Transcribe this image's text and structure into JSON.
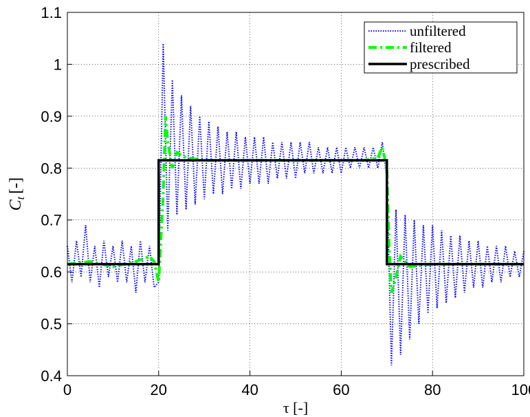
{
  "chart_data": {
    "type": "line",
    "xlabel": "τ [-]",
    "ylabel_main": "C",
    "ylabel_subscript": "t",
    "ylabel_unit": "[-]",
    "xlim": [
      0,
      100
    ],
    "ylim": [
      0.4,
      1.1
    ],
    "xticks": [
      0,
      20,
      40,
      60,
      80,
      100
    ],
    "yticks": [
      0.4,
      0.5,
      0.6,
      0.7,
      0.8,
      0.9,
      1,
      1.1
    ],
    "grid": true,
    "legend": "upper right",
    "series": [
      {
        "name": "unfiltered",
        "color": "#0000ff",
        "style": "dotted",
        "width": 2,
        "x": [
          0,
          1,
          2,
          3,
          4,
          5,
          6,
          7,
          8,
          9,
          10,
          11,
          12,
          13,
          14,
          15,
          16,
          17,
          18,
          19,
          20,
          21,
          22,
          23,
          24,
          25,
          26,
          27,
          28,
          29,
          30,
          31,
          32,
          33,
          34,
          35,
          36,
          37,
          38,
          39,
          40,
          41,
          42,
          43,
          44,
          45,
          46,
          47,
          48,
          49,
          50,
          51,
          52,
          53,
          54,
          55,
          56,
          57,
          58,
          59,
          60,
          61,
          62,
          63,
          64,
          65,
          66,
          67,
          68,
          69,
          70,
          71,
          72,
          73,
          74,
          75,
          76,
          77,
          78,
          79,
          80,
          81,
          82,
          83,
          84,
          85,
          86,
          87,
          88,
          89,
          90,
          91,
          92,
          93,
          94,
          95,
          96,
          97,
          98,
          99,
          100
        ],
        "values": [
          0.65,
          0.58,
          0.66,
          0.59,
          0.69,
          0.58,
          0.65,
          0.57,
          0.66,
          0.59,
          0.65,
          0.58,
          0.66,
          0.58,
          0.65,
          0.56,
          0.66,
          0.58,
          0.65,
          0.57,
          0.58,
          1.04,
          0.68,
          0.97,
          0.71,
          0.94,
          0.72,
          0.92,
          0.73,
          0.9,
          0.74,
          0.89,
          0.75,
          0.88,
          0.75,
          0.87,
          0.76,
          0.87,
          0.76,
          0.86,
          0.77,
          0.86,
          0.77,
          0.86,
          0.77,
          0.85,
          0.78,
          0.85,
          0.78,
          0.85,
          0.78,
          0.85,
          0.79,
          0.85,
          0.79,
          0.84,
          0.79,
          0.84,
          0.79,
          0.84,
          0.79,
          0.84,
          0.8,
          0.84,
          0.8,
          0.84,
          0.8,
          0.84,
          0.8,
          0.85,
          0.78,
          0.42,
          0.72,
          0.44,
          0.71,
          0.47,
          0.7,
          0.5,
          0.69,
          0.52,
          0.69,
          0.53,
          0.68,
          0.54,
          0.67,
          0.55,
          0.67,
          0.56,
          0.66,
          0.57,
          0.66,
          0.57,
          0.65,
          0.58,
          0.65,
          0.58,
          0.65,
          0.59,
          0.64,
          0.59,
          0.64
        ]
      },
      {
        "name": "filtered",
        "color": "#00ff00",
        "style": "dashdot",
        "width": 4,
        "x": [
          0,
          5,
          10,
          15,
          18,
          19,
          20,
          21,
          21.5,
          22,
          23,
          24,
          26,
          30,
          40,
          50,
          60,
          65,
          68,
          69,
          70,
          70.5,
          71,
          72,
          73,
          75,
          80,
          90,
          100
        ],
        "values": [
          0.615,
          0.62,
          0.61,
          0.62,
          0.63,
          0.62,
          0.58,
          0.75,
          0.9,
          0.85,
          0.8,
          0.83,
          0.82,
          0.815,
          0.815,
          0.815,
          0.815,
          0.815,
          0.82,
          0.84,
          0.8,
          0.65,
          0.56,
          0.59,
          0.63,
          0.61,
          0.615,
          0.615,
          0.615
        ]
      },
      {
        "name": "prescribed",
        "color": "#000000",
        "style": "solid",
        "width": 3.5,
        "x": [
          0,
          20,
          20,
          70,
          70,
          100
        ],
        "values": [
          0.615,
          0.615,
          0.815,
          0.815,
          0.615,
          0.615
        ]
      }
    ]
  }
}
